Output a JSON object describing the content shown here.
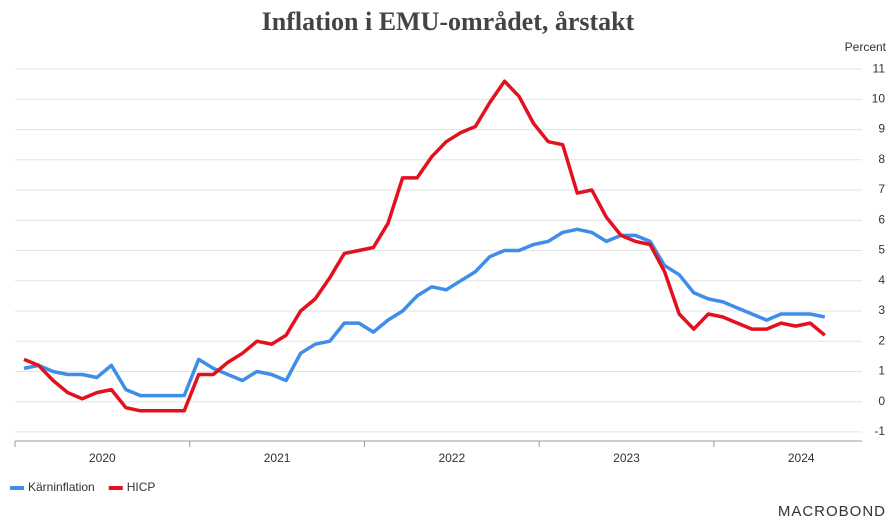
{
  "chart_data": {
    "type": "line",
    "title": "Inflation i EMU-området, årstakt",
    "y_axis_label": "Percent",
    "year_labels": [
      "2020",
      "2021",
      "2022",
      "2023",
      "2024"
    ],
    "categories": [
      null,
      null,
      null,
      null,
      null,
      null,
      null,
      null,
      null,
      null,
      null,
      null,
      null,
      null,
      null,
      null,
      null,
      null,
      null,
      null,
      null,
      null,
      null,
      null,
      null,
      null,
      null,
      null,
      null,
      null,
      null,
      null,
      null,
      null,
      null,
      null,
      null,
      null,
      null,
      null,
      null,
      null,
      null,
      null,
      null,
      null,
      null,
      null,
      null,
      null,
      null,
      null,
      null,
      null,
      null,
      null
    ],
    "series": [
      {
        "name": "Kärninflation",
        "color": "#3f8de8",
        "values": [
          1.1,
          1.2,
          1.0,
          0.9,
          0.9,
          0.8,
          1.2,
          0.4,
          0.2,
          0.2,
          0.2,
          0.2,
          1.4,
          1.1,
          0.9,
          0.7,
          1.0,
          0.9,
          0.7,
          1.6,
          1.9,
          2.0,
          2.6,
          2.6,
          2.3,
          2.7,
          3.0,
          3.5,
          3.8,
          3.7,
          4.0,
          4.3,
          4.8,
          5.0,
          5.0,
          5.2,
          5.3,
          5.6,
          5.7,
          5.6,
          5.3,
          5.5,
          5.5,
          5.3,
          4.5,
          4.2,
          3.6,
          3.4,
          3.3,
          3.1,
          2.9,
          2.7,
          2.9,
          2.9,
          2.9,
          2.8
        ]
      },
      {
        "name": "HICP",
        "color": "#e3101e",
        "values": [
          1.4,
          1.2,
          0.7,
          0.3,
          0.1,
          0.3,
          0.4,
          -0.2,
          -0.3,
          -0.3,
          -0.3,
          -0.3,
          0.9,
          0.9,
          1.3,
          1.6,
          2.0,
          1.9,
          2.2,
          3.0,
          3.4,
          4.1,
          4.9,
          5.0,
          5.1,
          5.9,
          7.4,
          7.4,
          8.1,
          8.6,
          8.9,
          9.1,
          9.9,
          10.6,
          10.1,
          9.2,
          8.6,
          8.5,
          6.9,
          7.0,
          6.1,
          5.5,
          5.3,
          5.2,
          4.3,
          2.9,
          2.4,
          2.9,
          2.8,
          2.6,
          2.4,
          2.4,
          2.6,
          2.5,
          2.6,
          2.2
        ]
      }
    ],
    "ylim": [
      -1.3,
      11.4
    ],
    "yticks": [
      -1,
      0,
      1,
      2,
      3,
      4,
      5,
      6,
      7,
      8,
      9,
      10,
      11
    ],
    "grid": true,
    "legend": "bottom-left",
    "logo": "MACROBOND"
  }
}
